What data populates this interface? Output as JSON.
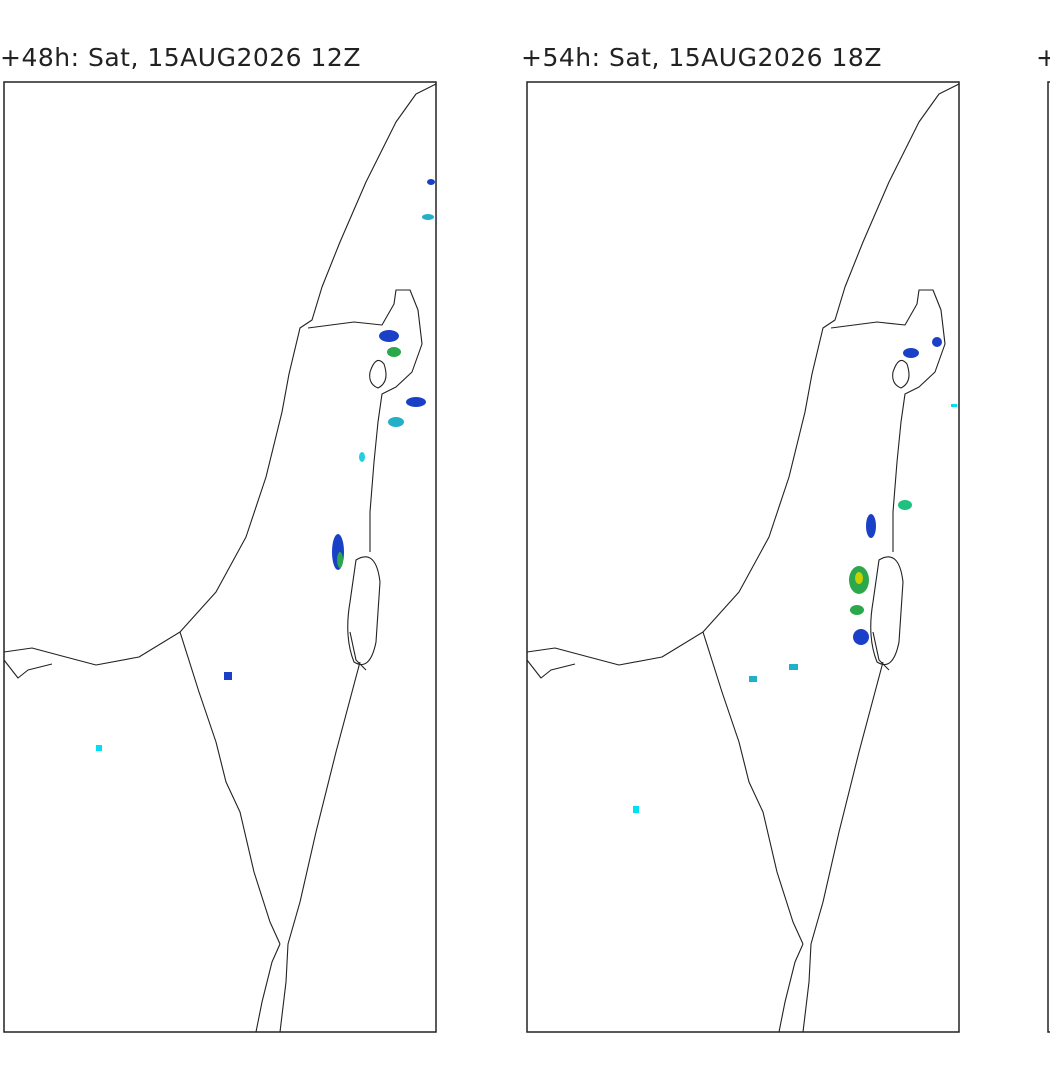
{
  "panels": [
    {
      "title": "+48h: Sat, 15AUG2026 12Z"
    },
    {
      "title": "+54h: Sat, 15AUG2026 18Z"
    },
    {
      "title": "+"
    }
  ]
}
